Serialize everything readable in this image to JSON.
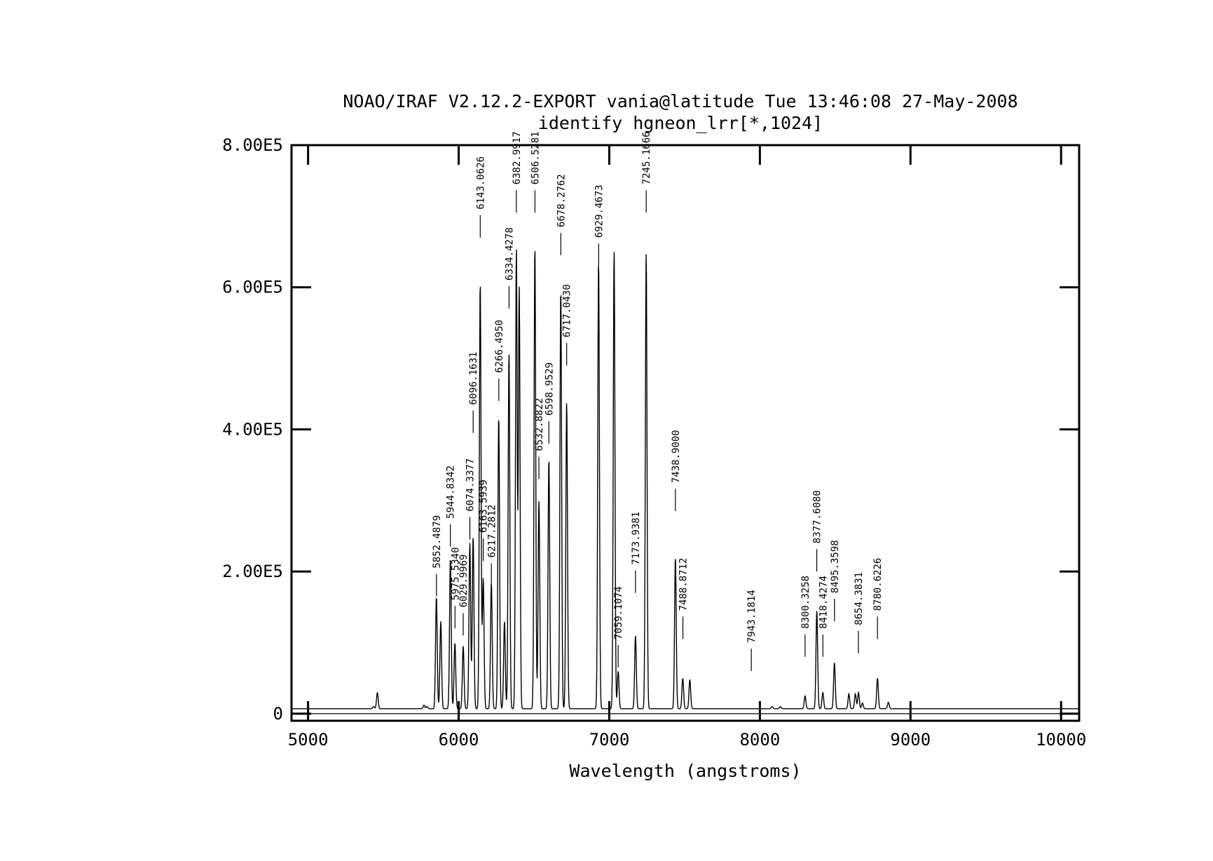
{
  "chart_data": {
    "type": "line",
    "title": "NOAO/IRAF V2.12.2-EXPORT vania@latitude Tue 13:46:08 27-May-2008",
    "subtitle": "identify hgneon_lrr[*,1024]",
    "xlabel": "Wavelength (angstroms)",
    "ylabel": "",
    "xlim": [
      4890,
      10120
    ],
    "ylim": [
      -10000,
      800000
    ],
    "x_ticks": [
      {
        "value": 5000,
        "label": "5000"
      },
      {
        "value": 6000,
        "label": "6000"
      },
      {
        "value": 7000,
        "label": "7000"
      },
      {
        "value": 8000,
        "label": "8000"
      },
      {
        "value": 9000,
        "label": "9000"
      },
      {
        "value": 10000,
        "label": "10000"
      }
    ],
    "y_ticks": [
      {
        "value": 0,
        "label": "0"
      },
      {
        "value": 200000,
        "label": "2.00E5"
      },
      {
        "value": 400000,
        "label": "4.00E5"
      },
      {
        "value": 600000,
        "label": "6.00E5"
      },
      {
        "value": 800000,
        "label": "8.00E5"
      }
    ],
    "baseline": 7000,
    "grid": false,
    "legend": "none",
    "peaks": [
      {
        "x": 5435,
        "y": 10000
      },
      {
        "x": 5460,
        "y": 30000
      },
      {
        "x": 5770,
        "y": 12000
      },
      {
        "x": 5790,
        "y": 10000
      },
      {
        "x": 5852,
        "y": 165000
      },
      {
        "x": 5881,
        "y": 130000
      },
      {
        "x": 5945,
        "y": 220000
      },
      {
        "x": 5975,
        "y": 100000
      },
      {
        "x": 6030,
        "y": 95000
      },
      {
        "x": 6074,
        "y": 240000
      },
      {
        "x": 6096,
        "y": 250000
      },
      {
        "x": 6143,
        "y": 610000
      },
      {
        "x": 6163,
        "y": 190000
      },
      {
        "x": 6217,
        "y": 185000
      },
      {
        "x": 6266,
        "y": 420000
      },
      {
        "x": 6304,
        "y": 130000
      },
      {
        "x": 6334,
        "y": 510000
      },
      {
        "x": 6383,
        "y": 655000
      },
      {
        "x": 6402,
        "y": 600000
      },
      {
        "x": 6506,
        "y": 660000
      },
      {
        "x": 6533,
        "y": 300000
      },
      {
        "x": 6599,
        "y": 360000
      },
      {
        "x": 6678,
        "y": 600000
      },
      {
        "x": 6717,
        "y": 440000
      },
      {
        "x": 6929,
        "y": 640000
      },
      {
        "x": 7032,
        "y": 655000
      },
      {
        "x": 7059,
        "y": 60000
      },
      {
        "x": 7174,
        "y": 110000
      },
      {
        "x": 7245,
        "y": 650000
      },
      {
        "x": 7439,
        "y": 220000
      },
      {
        "x": 7488,
        "y": 50000
      },
      {
        "x": 7535,
        "y": 48000
      },
      {
        "x": 7943,
        "y": 7000
      },
      {
        "x": 8082,
        "y": 10000
      },
      {
        "x": 8136,
        "y": 10000
      },
      {
        "x": 8300,
        "y": 25000
      },
      {
        "x": 8378,
        "y": 145000
      },
      {
        "x": 8418,
        "y": 30000
      },
      {
        "x": 8495,
        "y": 72000
      },
      {
        "x": 8591,
        "y": 28000
      },
      {
        "x": 8634,
        "y": 28000
      },
      {
        "x": 8655,
        "y": 30000
      },
      {
        "x": 8681,
        "y": 15000
      },
      {
        "x": 8781,
        "y": 50000
      },
      {
        "x": 8853,
        "y": 16000
      }
    ],
    "line_labels": [
      {
        "x": 5852.4879,
        "label": "5852.4879",
        "y_tick": 165000
      },
      {
        "x": 5944.8342,
        "label": "5944.8342",
        "y_tick": 235000
      },
      {
        "x": 5975.534,
        "label": "5975.5340",
        "y_tick": 120000
      },
      {
        "x": 6029.9969,
        "label": "6029.9969",
        "y_tick": 110000
      },
      {
        "x": 6074.3377,
        "label": "6074.3377",
        "y_tick": 245000
      },
      {
        "x": 6096.1631,
        "label": "6096.1631",
        "y_tick": 395000
      },
      {
        "x": 6143.0626,
        "label": "6143.0626",
        "y_tick": 670000
      },
      {
        "x": 6163.5939,
        "label": "6163.5939",
        "y_tick": 215000
      },
      {
        "x": 6217.2812,
        "label": "6217.2812",
        "y_tick": 180000
      },
      {
        "x": 6266.495,
        "label": "6266.4950",
        "y_tick": 440000
      },
      {
        "x": 6334.4278,
        "label": "6334.4278",
        "y_tick": 570000
      },
      {
        "x": 6382.9917,
        "label": "6382.9917",
        "y_tick": 705000
      },
      {
        "x": 6506.5281,
        "label": "6506.5281",
        "y_tick": 705000
      },
      {
        "x": 6532.8822,
        "label": "6532.8822",
        "y_tick": 330000
      },
      {
        "x": 6598.9529,
        "label": "6598.9529",
        "y_tick": 380000
      },
      {
        "x": 6678.2762,
        "label": "6678.2762",
        "y_tick": 645000
      },
      {
        "x": 6717.043,
        "label": "6717.0430",
        "y_tick": 490000
      },
      {
        "x": 6929.4673,
        "label": "6929.4673",
        "y_tick": 630000
      },
      {
        "x": 7059.1074,
        "label": "7059.1074",
        "y_tick": 65000
      },
      {
        "x": 7173.9381,
        "label": "7173.9381",
        "y_tick": 170000
      },
      {
        "x": 7245.1666,
        "label": "7245.1666",
        "y_tick": 705000
      },
      {
        "x": 7438.9,
        "label": "7438.9000",
        "y_tick": 285000
      },
      {
        "x": 7488.8712,
        "label": "7488.8712",
        "y_tick": 105000
      },
      {
        "x": 7943.1814,
        "label": "7943.1814",
        "y_tick": 60000
      },
      {
        "x": 8300.3258,
        "label": "8300.3258",
        "y_tick": 80000
      },
      {
        "x": 8377.608,
        "label": "8377.6080",
        "y_tick": 200000
      },
      {
        "x": 8418.4274,
        "label": "8418.4274",
        "y_tick": 80000
      },
      {
        "x": 8495.3598,
        "label": "8495.3598",
        "y_tick": 130000
      },
      {
        "x": 8654.3831,
        "label": "8654.3831",
        "y_tick": 85000
      },
      {
        "x": 8780.6226,
        "label": "8780.6226",
        "y_tick": 105000
      }
    ]
  }
}
